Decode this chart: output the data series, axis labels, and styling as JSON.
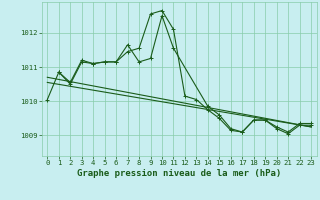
{
  "background_color": "#c8eef0",
  "grid_color": "#88ccaa",
  "line_color": "#1a5c1a",
  "xlabel": "Graphe pression niveau de la mer (hPa)",
  "xlabel_fontsize": 6.5,
  "ylim": [
    1008.4,
    1012.9
  ],
  "yticks": [
    1009,
    1010,
    1011,
    1012
  ],
  "xlim": [
    -0.5,
    23.5
  ],
  "xticks": [
    0,
    1,
    2,
    3,
    4,
    5,
    6,
    7,
    8,
    9,
    10,
    11,
    12,
    13,
    14,
    15,
    16,
    17,
    18,
    19,
    20,
    21,
    22,
    23
  ],
  "tick_fontsize": 5.2,
  "line_width": 0.8,
  "marker_size": 2.5,
  "series1_x": [
    0,
    1,
    2,
    3,
    4,
    5,
    6,
    7,
    8,
    9,
    10,
    11,
    12,
    13,
    14,
    15,
    16,
    17,
    18,
    19,
    20,
    21,
    22,
    23
  ],
  "series1_y": [
    1010.05,
    1010.85,
    1010.5,
    1011.15,
    1011.1,
    1011.15,
    1011.15,
    1011.45,
    1011.55,
    1012.55,
    1012.65,
    1012.1,
    1010.15,
    1010.05,
    1009.75,
    1009.5,
    1009.15,
    1009.1,
    1009.45,
    1009.45,
    1009.2,
    1009.05,
    1009.3,
    1009.3
  ],
  "series2_x": [
    1,
    2,
    3,
    4,
    5,
    6,
    7,
    8,
    9,
    10,
    11,
    14,
    15,
    16,
    17,
    18,
    19,
    20,
    21,
    22,
    23
  ],
  "series2_y": [
    1010.85,
    1010.55,
    1011.2,
    1011.1,
    1011.15,
    1011.15,
    1011.65,
    1011.15,
    1011.25,
    1012.5,
    1011.55,
    1009.85,
    1009.6,
    1009.2,
    1009.1,
    1009.45,
    1009.45,
    1009.25,
    1009.1,
    1009.35,
    1009.35
  ],
  "trend1_x": [
    0,
    23
  ],
  "trend1_y": [
    1010.7,
    1009.25
  ],
  "trend2_x": [
    0,
    23
  ],
  "trend2_y": [
    1010.55,
    1009.25
  ]
}
